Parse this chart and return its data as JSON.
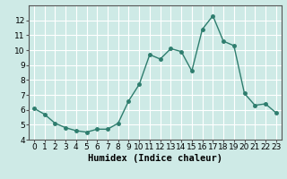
{
  "x": [
    0,
    1,
    2,
    3,
    4,
    5,
    6,
    7,
    8,
    9,
    10,
    11,
    12,
    13,
    14,
    15,
    16,
    17,
    18,
    19,
    20,
    21,
    22,
    23
  ],
  "y": [
    6.1,
    5.7,
    5.1,
    4.8,
    4.6,
    4.5,
    4.7,
    4.7,
    5.1,
    6.6,
    7.7,
    9.7,
    9.4,
    10.1,
    9.9,
    8.6,
    11.4,
    12.3,
    10.6,
    10.3,
    7.1,
    6.3,
    6.4,
    5.8
  ],
  "line_color": "#2e7d6e",
  "marker": "o",
  "markersize": 2.5,
  "linewidth": 1.0,
  "xlabel": "Humidex (Indice chaleur)",
  "xlim": [
    -0.5,
    23.5
  ],
  "ylim": [
    4,
    13
  ],
  "yticks": [
    4,
    5,
    6,
    7,
    8,
    9,
    10,
    11,
    12
  ],
  "xticks": [
    0,
    1,
    2,
    3,
    4,
    5,
    6,
    7,
    8,
    9,
    10,
    11,
    12,
    13,
    14,
    15,
    16,
    17,
    18,
    19,
    20,
    21,
    22,
    23
  ],
  "bg_color": "#ceeae6",
  "grid_color": "#ffffff",
  "tick_label_fontsize": 6.5,
  "xlabel_fontsize": 7.5
}
